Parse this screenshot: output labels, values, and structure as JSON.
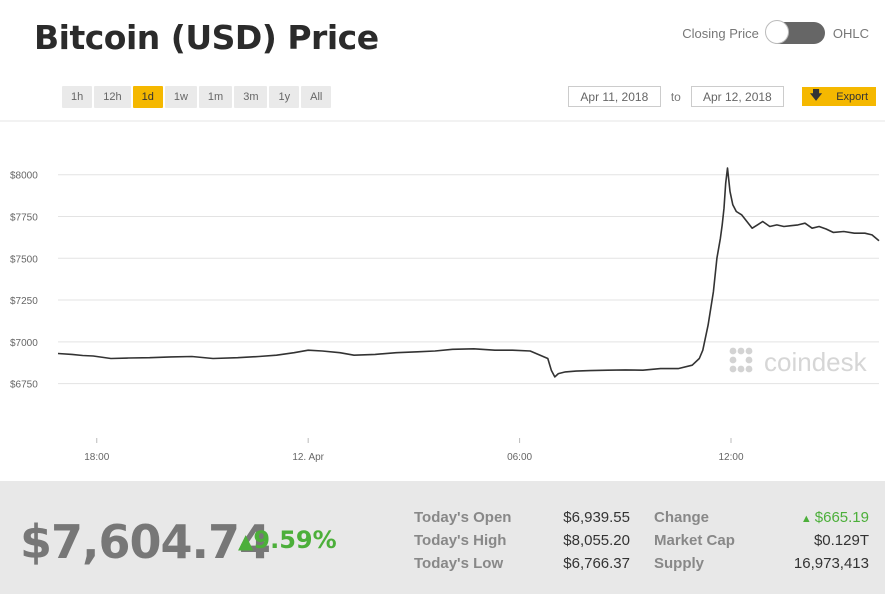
{
  "header": {
    "title": "Bitcoin (USD) Price",
    "toggle_left": "Closing Price",
    "toggle_right": "OHLC"
  },
  "ranges": [
    "1h",
    "12h",
    "1d",
    "1w",
    "1m",
    "3m",
    "1y",
    "All"
  ],
  "active_range": "1d",
  "date_range": {
    "from": "Apr 11, 2018",
    "to_label": "to",
    "to": "Apr 12, 2018",
    "export_label": "Export"
  },
  "watermark": "coindesk",
  "chart_data": {
    "type": "line",
    "title": "Bitcoin (USD) Price",
    "y_ticks": [
      "$6750",
      "$7000",
      "$7250",
      "$7500",
      "$7750",
      "$8000"
    ],
    "y_tick_values": [
      6750,
      7000,
      7250,
      7500,
      7750,
      8000
    ],
    "x_ticks": [
      "18:00",
      "12. Apr",
      "06:00",
      "12:00"
    ],
    "x_tick_values": [
      18,
      24,
      30,
      36
    ],
    "xlim": [
      16.9,
      40.2
    ],
    "ylim": [
      6580,
      8160
    ],
    "grid": true,
    "series": [
      {
        "x": [
          16.9,
          17.3,
          17.6,
          17.9,
          18.4,
          18.9,
          19.5,
          20.1,
          20.7,
          21.3,
          22.0,
          22.6,
          23.1,
          23.6,
          24.0,
          24.4,
          24.9,
          25.3,
          25.9,
          26.5,
          27.1,
          27.6,
          28.1,
          28.7,
          29.3,
          29.8,
          30.3,
          30.8,
          30.9,
          31.0,
          31.1,
          31.3,
          31.6,
          32.0,
          32.5,
          33.0,
          33.5,
          34.0,
          34.5,
          34.9,
          35.1,
          35.2,
          35.35,
          35.5,
          35.6,
          35.7,
          35.75,
          35.8,
          35.85,
          35.9,
          35.97,
          36.05,
          36.15,
          36.3,
          36.45,
          36.6,
          36.75,
          36.9,
          37.1,
          37.3,
          37.5,
          37.7,
          37.9,
          38.1,
          38.3,
          38.5,
          38.7,
          38.9,
          39.2,
          39.5,
          39.8,
          40.0,
          40.2
        ],
        "y": [
          6930,
          6925,
          6918,
          6915,
          6900,
          6903,
          6905,
          6910,
          6912,
          6900,
          6905,
          6912,
          6920,
          6935,
          6950,
          6945,
          6935,
          6920,
          6925,
          6935,
          6940,
          6945,
          6955,
          6958,
          6950,
          6950,
          6945,
          6900,
          6830,
          6790,
          6810,
          6820,
          6825,
          6828,
          6830,
          6832,
          6830,
          6840,
          6840,
          6860,
          6900,
          6950,
          7100,
          7300,
          7500,
          7620,
          7700,
          7800,
          7950,
          8040,
          7900,
          7820,
          7780,
          7760,
          7720,
          7680,
          7700,
          7720,
          7690,
          7700,
          7690,
          7695,
          7700,
          7710,
          7680,
          7690,
          7675,
          7655,
          7660,
          7650,
          7650,
          7640,
          7605
        ]
      }
    ]
  },
  "stats": {
    "price": "$7,604.74",
    "pct_change": "9.59%",
    "rows": [
      {
        "label1": "Today's Open",
        "value1": "$6,939.55",
        "label2": "Change",
        "value2": "$665.19"
      },
      {
        "label1": "Today's High",
        "value1": "$8,055.20",
        "label2": "Market Cap",
        "value2": "$0.129T"
      },
      {
        "label1": "Today's Low",
        "value1": "$6,766.37",
        "label2": "Supply",
        "value2": "16,973,413"
      }
    ]
  },
  "colors": {
    "accent": "#f5b800",
    "positive": "#4caf3a",
    "line": "#333333"
  }
}
